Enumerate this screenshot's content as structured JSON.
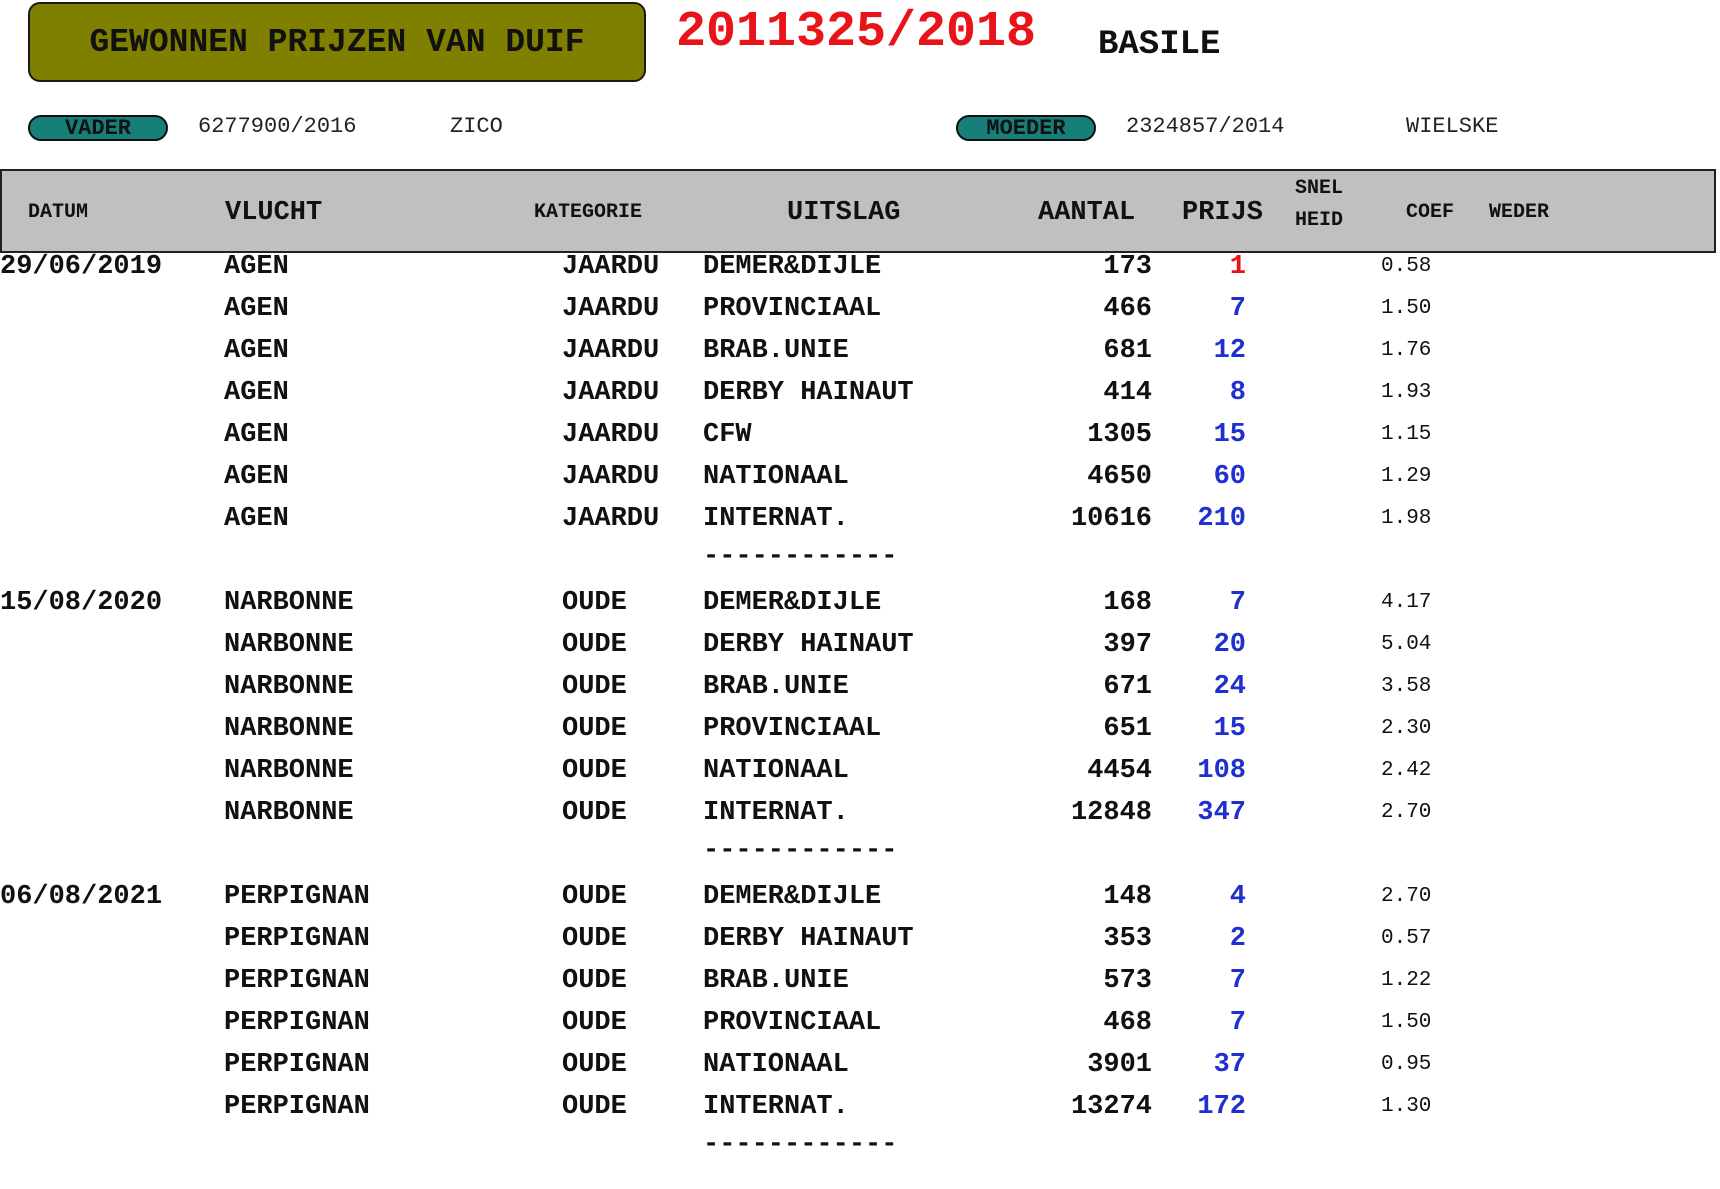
{
  "header": {
    "title": "GEWONNEN PRIJZEN VAN DUIF",
    "ring": "2011325/2018",
    "name": "BASILE"
  },
  "parents": {
    "vader": {
      "label": "VADER",
      "ring": "6277900/2016",
      "name": "ZICO"
    },
    "moeder": {
      "label": "MOEDER",
      "ring": "2324857/2014",
      "name": "WIELSKE"
    }
  },
  "columns": {
    "datum": "DATUM",
    "vlucht": "VLUCHT",
    "kategorie": "KATEGORIE",
    "uitslag": "UITSLAG",
    "aantal": "AANTAL",
    "prijs": "PRIJS",
    "snel": "SNEL",
    "heid": "HEID",
    "coef": "COEF",
    "weder": "WEDER"
  },
  "colors": {
    "title_bg": "#808000",
    "ring": "#e8141a",
    "pill": "#177f7a",
    "prize_first": "#e8141a",
    "prize": "#1f2fd0",
    "header_band": "#c0c0c0"
  },
  "separator": "------------",
  "groups": [
    {
      "datum": "29/06/2019",
      "rows": [
        {
          "vlucht": "AGEN",
          "kategorie": "JAARDU",
          "uitslag": "DEMER&DIJLE",
          "aantal": "173",
          "prijs": "1",
          "coef": "0.58"
        },
        {
          "vlucht": "AGEN",
          "kategorie": "JAARDU",
          "uitslag": "PROVINCIAAL",
          "aantal": "466",
          "prijs": "7",
          "coef": "1.50"
        },
        {
          "vlucht": "AGEN",
          "kategorie": "JAARDU",
          "uitslag": "BRAB.UNIE",
          "aantal": "681",
          "prijs": "12",
          "coef": "1.76"
        },
        {
          "vlucht": "AGEN",
          "kategorie": "JAARDU",
          "uitslag": "DERBY HAINAUT",
          "aantal": "414",
          "prijs": "8",
          "coef": "1.93"
        },
        {
          "vlucht": "AGEN",
          "kategorie": "JAARDU",
          "uitslag": "CFW",
          "aantal": "1305",
          "prijs": "15",
          "coef": "1.15"
        },
        {
          "vlucht": "AGEN",
          "kategorie": "JAARDU",
          "uitslag": "NATIONAAL",
          "aantal": "4650",
          "prijs": "60",
          "coef": "1.29"
        },
        {
          "vlucht": "AGEN",
          "kategorie": "JAARDU",
          "uitslag": "INTERNAT.",
          "aantal": "10616",
          "prijs": "210",
          "coef": "1.98"
        }
      ]
    },
    {
      "datum": "15/08/2020",
      "rows": [
        {
          "vlucht": "NARBONNE",
          "kategorie": "OUDE",
          "uitslag": "DEMER&DIJLE",
          "aantal": "168",
          "prijs": "7",
          "coef": "4.17"
        },
        {
          "vlucht": "NARBONNE",
          "kategorie": "OUDE",
          "uitslag": "DERBY HAINAUT",
          "aantal": "397",
          "prijs": "20",
          "coef": "5.04"
        },
        {
          "vlucht": "NARBONNE",
          "kategorie": "OUDE",
          "uitslag": "BRAB.UNIE",
          "aantal": "671",
          "prijs": "24",
          "coef": "3.58"
        },
        {
          "vlucht": "NARBONNE",
          "kategorie": "OUDE",
          "uitslag": "PROVINCIAAL",
          "aantal": "651",
          "prijs": "15",
          "coef": "2.30"
        },
        {
          "vlucht": "NARBONNE",
          "kategorie": "OUDE",
          "uitslag": "NATIONAAL",
          "aantal": "4454",
          "prijs": "108",
          "coef": "2.42"
        },
        {
          "vlucht": "NARBONNE",
          "kategorie": "OUDE",
          "uitslag": "INTERNAT.",
          "aantal": "12848",
          "prijs": "347",
          "coef": "2.70"
        }
      ]
    },
    {
      "datum": "06/08/2021",
      "rows": [
        {
          "vlucht": "PERPIGNAN",
          "kategorie": "OUDE",
          "uitslag": "DEMER&DIJLE",
          "aantal": "148",
          "prijs": "4",
          "coef": "2.70"
        },
        {
          "vlucht": "PERPIGNAN",
          "kategorie": "OUDE",
          "uitslag": "DERBY HAINAUT",
          "aantal": "353",
          "prijs": "2",
          "coef": "0.57"
        },
        {
          "vlucht": "PERPIGNAN",
          "kategorie": "OUDE",
          "uitslag": "BRAB.UNIE",
          "aantal": "573",
          "prijs": "7",
          "coef": "1.22"
        },
        {
          "vlucht": "PERPIGNAN",
          "kategorie": "OUDE",
          "uitslag": "PROVINCIAAL",
          "aantal": "468",
          "prijs": "7",
          "coef": "1.50"
        },
        {
          "vlucht": "PERPIGNAN",
          "kategorie": "OUDE",
          "uitslag": "NATIONAAL",
          "aantal": "3901",
          "prijs": "37",
          "coef": "0.95"
        },
        {
          "vlucht": "PERPIGNAN",
          "kategorie": "OUDE",
          "uitslag": "INTERNAT.",
          "aantal": "13274",
          "prijs": "172",
          "coef": "1.30"
        }
      ]
    }
  ]
}
